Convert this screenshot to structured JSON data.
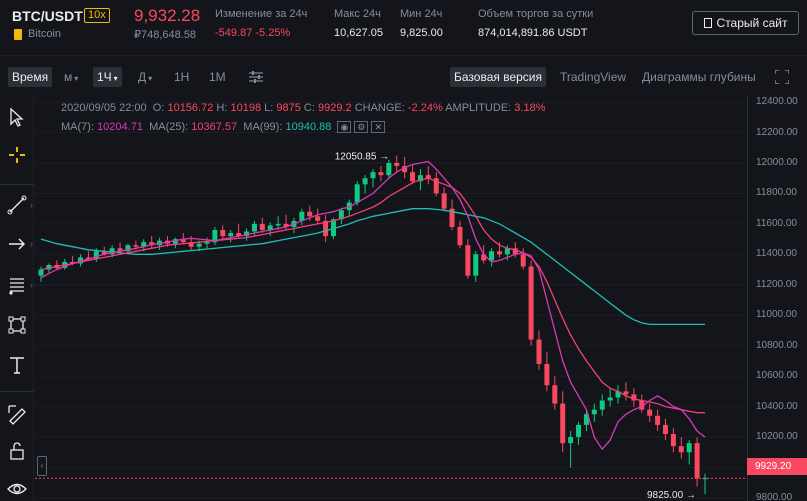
{
  "header": {
    "pair": "BTC/USDT",
    "leverage": "10x",
    "coin_name": "Bitcoin",
    "last_price": "9,932.28",
    "last_price_rub": "₽748,648.58",
    "change_label": "Изменение за 24ч",
    "change_value": "-549.87 -5.25%",
    "high_label": "Макс 24ч",
    "high_value": "10,627.05",
    "low_label": "Мин 24ч",
    "low_value": "9,825.00",
    "volume_label": "Объем торгов за сутки",
    "volume_value": "874,014,891.86 USDT",
    "old_site_label": "Старый сайт"
  },
  "toolbar": {
    "time_label": "Время",
    "m_label": "м",
    "h1_label": "1Ч",
    "d_label": "Д",
    "week_label": "1Н",
    "month_label": "1М",
    "basic_label": "Базовая версия",
    "tradingview_label": "TradingView",
    "depth_label": "Диаграммы глубины"
  },
  "info": {
    "date": "2020/09/05 22:00",
    "open_label": "O:",
    "open": "10156.72",
    "high_label": "H:",
    "high": "10198",
    "low_label": "L:",
    "low": "9875",
    "close_label": "C:",
    "close": "9929.2",
    "change_label": "CHANGE:",
    "change": "-2.24%",
    "amp_label": "AMPLITUDE:",
    "amp": "3.18%",
    "ma7_label": "MA(7):",
    "ma7": "10204.71",
    "ma25_label": "MA(25):",
    "ma25": "10367.57",
    "ma99_label": "MA(99):",
    "ma99": "10940.88"
  },
  "axis": {
    "ticks": [
      "12400.00",
      "12200.00",
      "12000.00",
      "11800.00",
      "11600.00",
      "11400.00",
      "11200.00",
      "11000.00",
      "10800.00",
      "10600.00",
      "10400.00",
      "10200.00",
      "10000.00",
      "9800.00"
    ],
    "current_price": "9929.20",
    "max_marker": "12050.85",
    "min_marker": "9825.00"
  },
  "colors": {
    "up": "#0ecb81",
    "down": "#f84960",
    "ma7": "#d63ab6",
    "ma25": "#f0407f",
    "ma99": "#1fbdb5"
  },
  "chart_data": {
    "type": "candlestick",
    "timeframe": "1Ч",
    "ylim": [
      9780,
      12440
    ],
    "ma7": [
      11245,
      11275,
      11300,
      11320,
      11340,
      11355,
      11370,
      11385,
      11400,
      11410,
      11420,
      11430,
      11440,
      11450,
      11465,
      11470,
      11480,
      11490,
      11500,
      11505,
      11500,
      11495,
      11490,
      11500,
      11510,
      11520,
      11530,
      11540,
      11550,
      11560,
      11570,
      11580,
      11600,
      11620,
      11640,
      11660,
      11670,
      11680,
      11700,
      11710,
      11740,
      11770,
      11800,
      11850,
      11900,
      11940,
      11970,
      11990,
      12000,
      12010,
      11960,
      11900,
      11840,
      11760,
      11650,
      11500,
      11400,
      11350,
      11360,
      11380,
      11400,
      11410,
      11390,
      11300,
      11100,
      10900,
      10700,
      10560,
      10470,
      10380,
      10200,
      10120,
      10180,
      10300,
      10350,
      10380,
      10400,
      10440,
      10470,
      10440,
      10400,
      10380,
      10320,
      10240,
      10200
    ],
    "ma25": [
      11300,
      11310,
      11320,
      11330,
      11340,
      11350,
      11360,
      11370,
      11380,
      11390,
      11400,
      11410,
      11420,
      11430,
      11440,
      11450,
      11460,
      11465,
      11470,
      11475,
      11480,
      11485,
      11490,
      11495,
      11500,
      11505,
      11510,
      11520,
      11530,
      11540,
      11550,
      11560,
      11570,
      11580,
      11590,
      11600,
      11610,
      11620,
      11635,
      11650,
      11670,
      11690,
      11710,
      11740,
      11780,
      11810,
      11840,
      11870,
      11890,
      11900,
      11880,
      11860,
      11840,
      11800,
      11730,
      11650,
      11560,
      11500,
      11460,
      11440,
      11430,
      11410,
      11380,
      11320,
      11220,
      11100,
      10980,
      10870,
      10780,
      10700,
      10630,
      10560,
      10520,
      10500,
      10470,
      10450,
      10440,
      10430,
      10420,
      10400,
      10390,
      10380,
      10370,
      10360,
      10360
    ],
    "ma99": [
      11500,
      11485,
      11470,
      11460,
      11450,
      11440,
      11430,
      11425,
      11420,
      11415,
      11410,
      11405,
      11400,
      11400,
      11400,
      11405,
      11410,
      11415,
      11420,
      11425,
      11430,
      11435,
      11440,
      11445,
      11450,
      11455,
      11460,
      11465,
      11470,
      11480,
      11490,
      11500,
      11510,
      11520,
      11530,
      11540,
      11555,
      11570,
      11585,
      11600,
      11620,
      11635,
      11650,
      11660,
      11670,
      11680,
      11690,
      11700,
      11700,
      11700,
      11695,
      11690,
      11680,
      11670,
      11660,
      11650,
      11640,
      11620,
      11600,
      11570,
      11540,
      11510,
      11480,
      11440,
      11400,
      11360,
      11320,
      11280,
      11240,
      11200,
      11160,
      11120,
      11080,
      11040,
      11000,
      10970,
      10950,
      10940,
      10940,
      10940,
      10940,
      10940,
      10940,
      10940,
      10940
    ],
    "candles": [
      [
        11260,
        11320,
        11220,
        11300
      ],
      [
        11300,
        11340,
        11280,
        11330
      ],
      [
        11330,
        11360,
        11300,
        11310
      ],
      [
        11310,
        11370,
        11300,
        11350
      ],
      [
        11350,
        11390,
        11330,
        11340
      ],
      [
        11340,
        11400,
        11320,
        11380
      ],
      [
        11380,
        11420,
        11360,
        11370
      ],
      [
        11370,
        11440,
        11350,
        11420
      ],
      [
        11420,
        11450,
        11390,
        11400
      ],
      [
        11400,
        11460,
        11380,
        11440
      ],
      [
        11440,
        11480,
        11410,
        11420
      ],
      [
        11420,
        11470,
        11400,
        11460
      ],
      [
        11460,
        11490,
        11430,
        11450
      ],
      [
        11450,
        11500,
        11420,
        11480
      ],
      [
        11480,
        11520,
        11440,
        11460
      ],
      [
        11460,
        11510,
        11430,
        11490
      ],
      [
        11490,
        11520,
        11450,
        11470
      ],
      [
        11470,
        11510,
        11440,
        11500
      ],
      [
        11500,
        11540,
        11470,
        11480
      ],
      [
        11480,
        11520,
        11430,
        11450
      ],
      [
        11450,
        11490,
        11420,
        11470
      ],
      [
        11470,
        11510,
        11440,
        11480
      ],
      [
        11480,
        11580,
        11460,
        11560
      ],
      [
        11560,
        11590,
        11500,
        11520
      ],
      [
        11520,
        11560,
        11480,
        11540
      ],
      [
        11540,
        11600,
        11510,
        11520
      ],
      [
        11520,
        11570,
        11490,
        11550
      ],
      [
        11550,
        11620,
        11520,
        11600
      ],
      [
        11600,
        11640,
        11540,
        11560
      ],
      [
        11560,
        11610,
        11520,
        11590
      ],
      [
        11590,
        11650,
        11560,
        11600
      ],
      [
        11600,
        11660,
        11560,
        11580
      ],
      [
        11580,
        11640,
        11540,
        11620
      ],
      [
        11620,
        11700,
        11590,
        11680
      ],
      [
        11680,
        11720,
        11620,
        11650
      ],
      [
        11650,
        11700,
        11600,
        11620
      ],
      [
        11620,
        11660,
        11480,
        11520
      ],
      [
        11520,
        11640,
        11500,
        11630
      ],
      [
        11630,
        11700,
        11600,
        11690
      ],
      [
        11690,
        11760,
        11650,
        11740
      ],
      [
        11740,
        11880,
        11720,
        11860
      ],
      [
        11860,
        11920,
        11800,
        11900
      ],
      [
        11900,
        11960,
        11840,
        11940
      ],
      [
        11940,
        11980,
        11880,
        11920
      ],
      [
        11920,
        12020,
        11900,
        12000
      ],
      [
        12000,
        12050,
        11940,
        11980
      ],
      [
        11980,
        12040,
        11900,
        11940
      ],
      [
        11940,
        11990,
        11860,
        11880
      ],
      [
        11880,
        11960,
        11820,
        11920
      ],
      [
        11920,
        11980,
        11860,
        11900
      ],
      [
        11900,
        11940,
        11780,
        11800
      ],
      [
        11800,
        11840,
        11680,
        11700
      ],
      [
        11700,
        11760,
        11560,
        11580
      ],
      [
        11580,
        11620,
        11440,
        11460
      ],
      [
        11460,
        11500,
        11240,
        11260
      ],
      [
        11260,
        11420,
        11220,
        11400
      ],
      [
        11400,
        11460,
        11340,
        11360
      ],
      [
        11360,
        11440,
        11320,
        11420
      ],
      [
        11420,
        11480,
        11380,
        11400
      ],
      [
        11400,
        11460,
        11360,
        11440
      ],
      [
        11440,
        11480,
        11380,
        11400
      ],
      [
        11400,
        11440,
        11300,
        11320
      ],
      [
        11320,
        11360,
        10800,
        10840
      ],
      [
        10840,
        10900,
        10640,
        10680
      ],
      [
        10680,
        10760,
        10500,
        10540
      ],
      [
        10540,
        10600,
        10380,
        10420
      ],
      [
        10420,
        10500,
        10100,
        10160
      ],
      [
        10160,
        10240,
        10000,
        10200
      ],
      [
        10200,
        10300,
        10150,
        10280
      ],
      [
        10280,
        10380,
        10240,
        10350
      ],
      [
        10350,
        10420,
        10300,
        10380
      ],
      [
        10380,
        10480,
        10340,
        10440
      ],
      [
        10440,
        10520,
        10400,
        10460
      ],
      [
        10460,
        10540,
        10420,
        10500
      ],
      [
        10500,
        10560,
        10440,
        10480
      ],
      [
        10480,
        10520,
        10400,
        10440
      ],
      [
        10440,
        10480,
        10360,
        10380
      ],
      [
        10380,
        10420,
        10300,
        10340
      ],
      [
        10340,
        10380,
        10240,
        10280
      ],
      [
        10280,
        10320,
        10180,
        10220
      ],
      [
        10220,
        10260,
        10100,
        10140
      ],
      [
        10140,
        10200,
        10060,
        10100
      ],
      [
        10100,
        10180,
        10020,
        10160
      ],
      [
        10160,
        10198,
        9875,
        9929
      ],
      [
        9929,
        9960,
        9825,
        9930
      ]
    ]
  }
}
